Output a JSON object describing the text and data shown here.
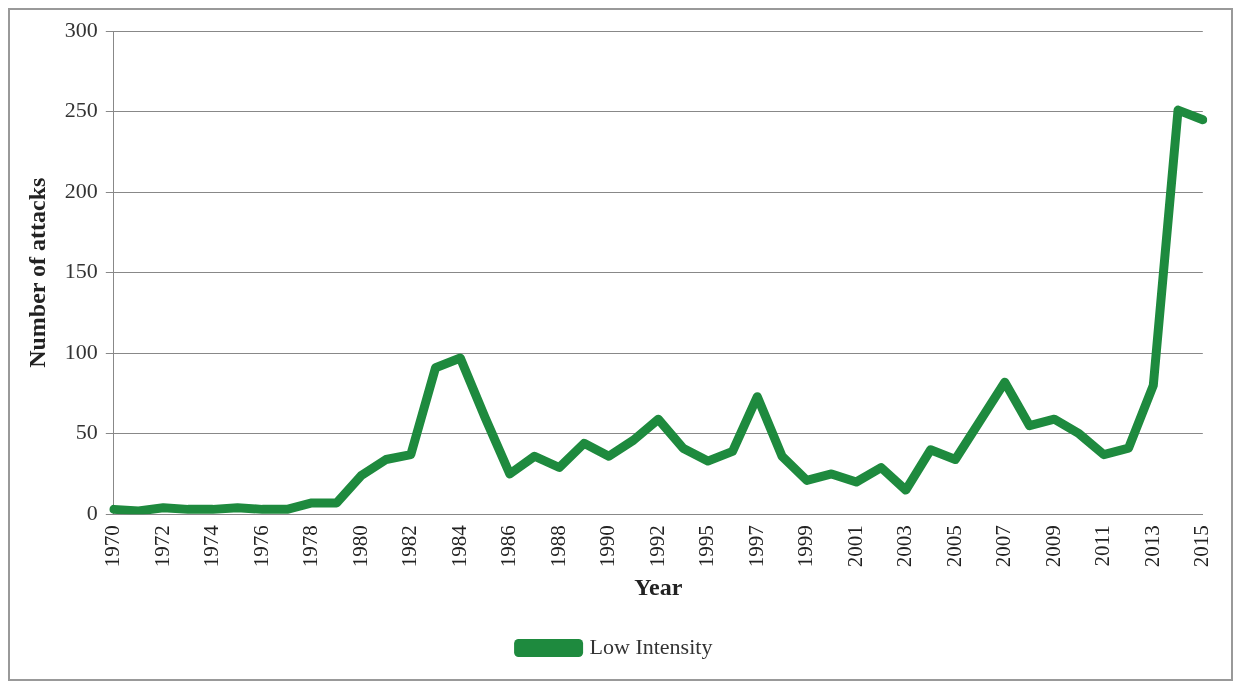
{
  "chart_data": {
    "type": "line",
    "xlabel": "Year",
    "ylabel": "Number of attacks",
    "categories": [
      "1970",
      null,
      "1972",
      null,
      "1974",
      null,
      "1976",
      null,
      "1978",
      null,
      "1980",
      null,
      "1982",
      null,
      "1984",
      null,
      "1986",
      null,
      "1988",
      null,
      "1990",
      null,
      "1992",
      null,
      "1995",
      null,
      "1997",
      null,
      "1999",
      null,
      "2001",
      null,
      "2003",
      null,
      "2005",
      null,
      "2007",
      null,
      "2009",
      null,
      "2011",
      null,
      "2013",
      null,
      "2015"
    ],
    "series": [
      {
        "name": "Low Intensity",
        "color": "#1e8a3e",
        "values": [
          3,
          2,
          4,
          3,
          3,
          4,
          3,
          3,
          7,
          7,
          24,
          34,
          37,
          91,
          97,
          60,
          25,
          36,
          29,
          44,
          36,
          46,
          59,
          41,
          33,
          39,
          73,
          36,
          21,
          25,
          20,
          29,
          15,
          40,
          34,
          58,
          82,
          55,
          59,
          50,
          37,
          41,
          80,
          251,
          245
        ]
      }
    ],
    "ylim": [
      0,
      300
    ],
    "yticks": [
      0,
      50,
      100,
      150,
      200,
      250,
      300
    ],
    "grid": "y",
    "legend": "bottom",
    "marker": "none",
    "line_style": "solid"
  }
}
